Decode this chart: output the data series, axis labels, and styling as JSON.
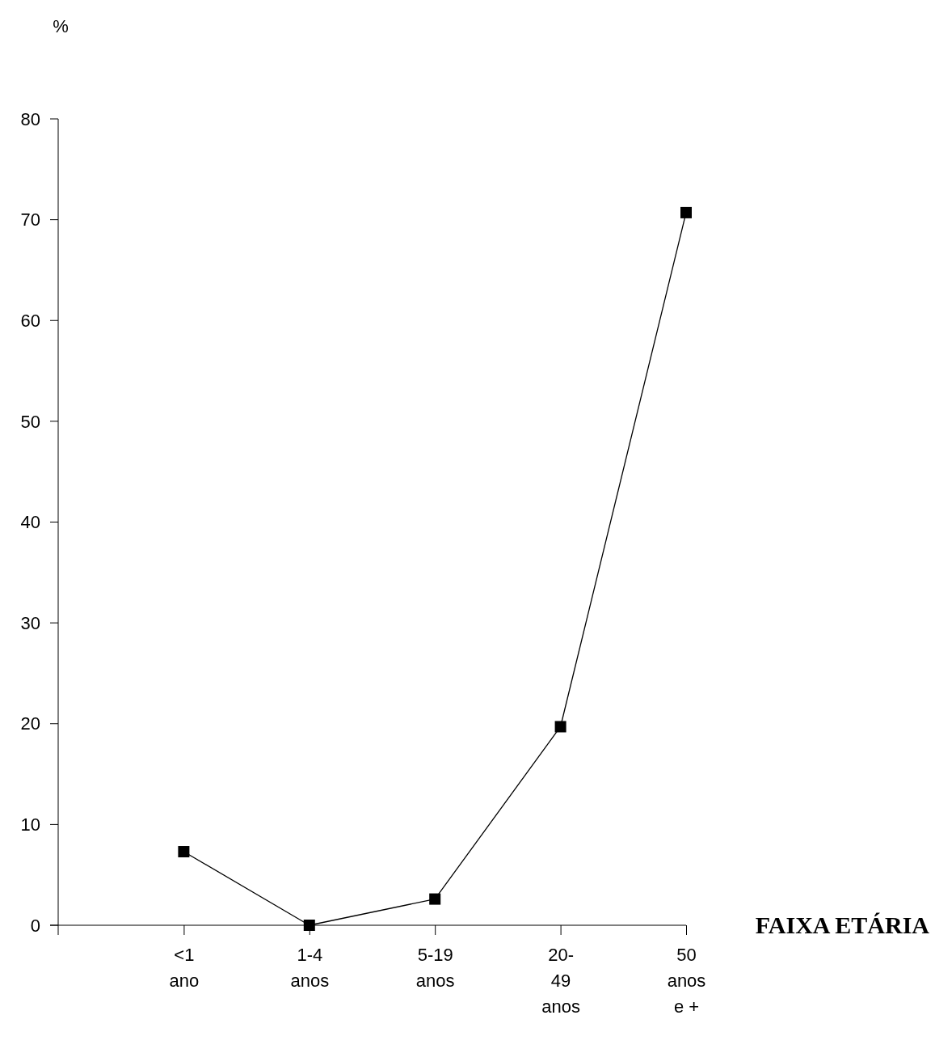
{
  "chart_data": {
    "type": "line",
    "xlabel": "FAIXA ETÁRIA",
    "ylabel": "%",
    "categories": [
      "<1 ano",
      "1-4 anos",
      "5-19 anos",
      "20-49 anos",
      "50 anos e +"
    ],
    "series": [
      {
        "color": "#000000",
        "values": [
          7.3,
          0,
          2.6,
          19.7,
          70.7
        ]
      }
    ],
    "ylim": [
      0,
      80
    ],
    "yticks": [
      0,
      10,
      20,
      30,
      40,
      50,
      60,
      70,
      80
    ],
    "grid": false,
    "marker": "square",
    "line_style": "solid"
  }
}
